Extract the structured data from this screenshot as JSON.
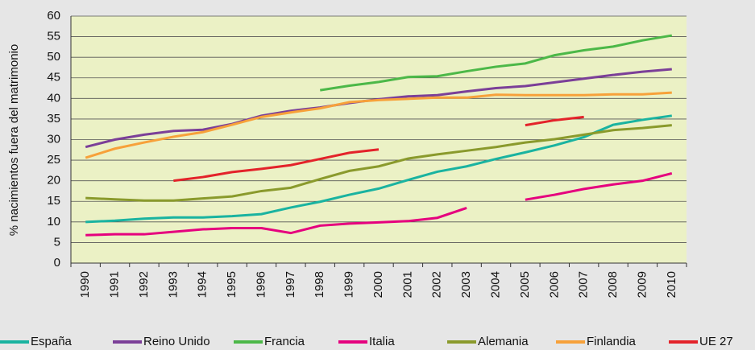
{
  "chart_data": {
    "type": "line",
    "y_label": "% nacimientos fuera del matrimonio",
    "categories": [
      "1990",
      "1991",
      "1992",
      "1993",
      "1994",
      "1995",
      "1996",
      "1997",
      "1998",
      "1999",
      "2000",
      "2001",
      "2002",
      "2003",
      "2004",
      "2005",
      "2006",
      "2007",
      "2008",
      "2009",
      "2010"
    ],
    "series": [
      {
        "name": "España",
        "color": "#1ab3a0",
        "values": [
          10,
          10.3,
          10.8,
          11.1,
          11.1,
          11.4,
          11.9,
          13.5,
          14.9,
          16.6,
          18.1,
          20.2,
          22.2,
          23.5,
          25.3,
          26.9,
          28.6,
          30.6,
          33.6,
          34.8,
          35.8
        ]
      },
      {
        "name": "Reino Unido",
        "color": "#7b3f98",
        "values": [
          28.2,
          30,
          31.2,
          32.1,
          32.4,
          33.8,
          35.8,
          37,
          37.8,
          38.9,
          39.8,
          40.5,
          40.8,
          41.7,
          42.5,
          43,
          43.9,
          44.8,
          45.7,
          46.5,
          47.1
        ]
      },
      {
        "name": "Francia",
        "color": "#4cb848",
        "values": [
          null,
          null,
          null,
          null,
          null,
          null,
          null,
          null,
          42,
          43.1,
          44,
          45.2,
          45.4,
          46.6,
          47.7,
          48.5,
          50.5,
          51.7,
          52.6,
          54.1,
          55.3
        ]
      },
      {
        "name": "Italia",
        "color": "#e5007e",
        "values": [
          6.8,
          7,
          7,
          7.6,
          8.2,
          8.5,
          8.5,
          7.3,
          9.1,
          9.6,
          9.9,
          10.2,
          11,
          13.4,
          null,
          15.4,
          16.6,
          18,
          19.1,
          20,
          21.8
        ]
      },
      {
        "name": "Alemania",
        "color": "#8a9a2c",
        "values": [
          15.8,
          15.5,
          15.2,
          15.2,
          15.7,
          16.2,
          17.5,
          18.3,
          20.4,
          22.4,
          23.5,
          25.4,
          26.4,
          27.3,
          28.2,
          29.3,
          30.1,
          31.2,
          32.3,
          32.8,
          33.5
        ]
      },
      {
        "name": "Finlandia",
        "color": "#f7a13a",
        "values": [
          25.6,
          27.8,
          29.3,
          30.7,
          31.8,
          33.6,
          35.5,
          36.6,
          37.6,
          39.1,
          39.6,
          39.9,
          40.2,
          40.2,
          40.9,
          40.8,
          40.8,
          40.8,
          41,
          41,
          41.4
        ]
      },
      {
        "name": "UE 27",
        "color": "#e3232a",
        "values": [
          null,
          null,
          null,
          20,
          20.9,
          22.1,
          22.9,
          23.8,
          25.3,
          26.8,
          27.6,
          null,
          null,
          null,
          null,
          33.5,
          34.7,
          35.5,
          null,
          null,
          null
        ]
      }
    ],
    "ylim": [
      0,
      60
    ],
    "yticks": [
      0,
      5,
      10,
      15,
      20,
      25,
      30,
      35,
      40,
      45,
      50,
      55,
      60
    ],
    "grid": true,
    "legend": "bottom"
  }
}
